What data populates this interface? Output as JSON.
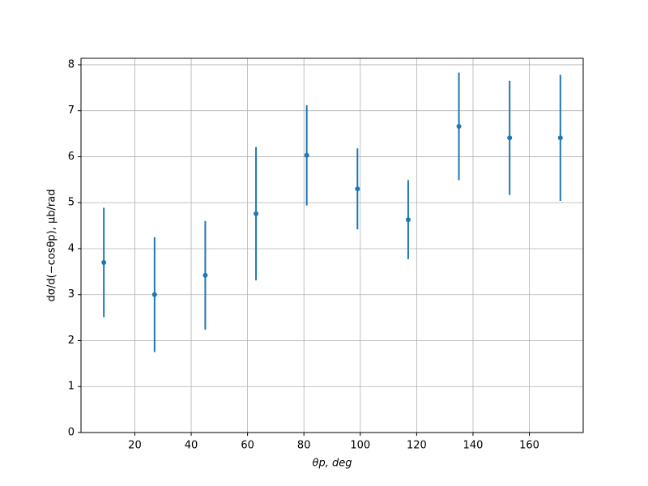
{
  "chart_data": {
    "type": "errorbar",
    "x_label": "θp, deg",
    "y_label": "dσ/d(−cosθp), μb/rad",
    "x": [
      9,
      27,
      45,
      63,
      81,
      99,
      117,
      135,
      153,
      171
    ],
    "series": [
      {
        "color": "#1f77b4",
        "values": [
          3.7,
          3.0,
          3.42,
          4.76,
          6.03,
          5.3,
          4.63,
          6.66,
          6.41,
          6.41
        ],
        "errors": [
          1.19,
          1.25,
          1.18,
          1.45,
          1.09,
          0.88,
          0.86,
          1.17,
          1.24,
          1.37
        ]
      }
    ],
    "xlim": [
      0.9,
      179.1
    ],
    "ylim": [
      0,
      8.14
    ],
    "xticks": [
      20,
      40,
      60,
      80,
      100,
      120,
      140,
      160
    ],
    "yticks": [
      0,
      1,
      2,
      3,
      4,
      5,
      6,
      7,
      8
    ],
    "grid": true
  }
}
